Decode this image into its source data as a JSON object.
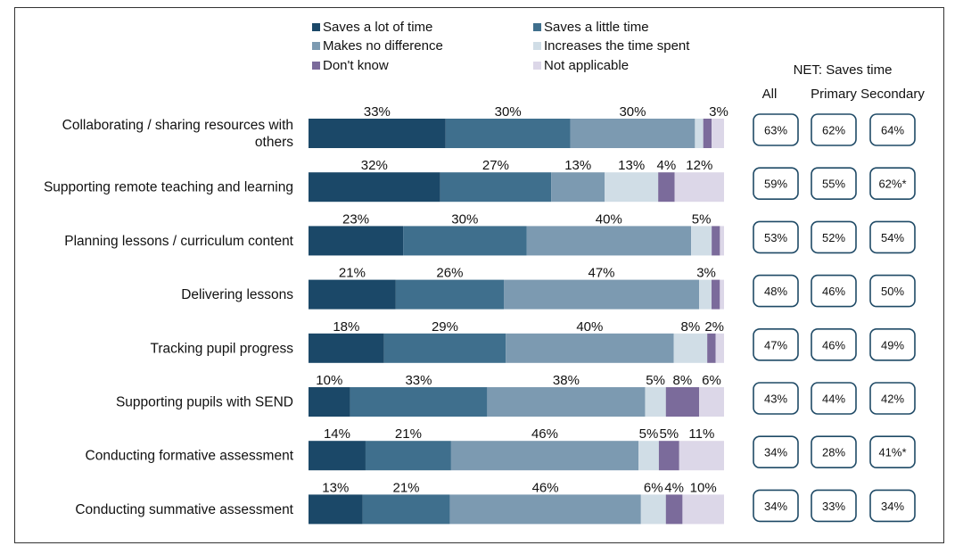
{
  "chart_data": {
    "type": "bar",
    "stacked": "100% horizontal",
    "legend_position": "top",
    "series": [
      {
        "name": "Saves a lot of time",
        "color": "#1b4868",
        "values": [
          33,
          32,
          23,
          21,
          18,
          10,
          14,
          13
        ]
      },
      {
        "name": "Saves a little time",
        "color": "#3f6f8d",
        "values": [
          30,
          27,
          30,
          26,
          29,
          33,
          21,
          21
        ]
      },
      {
        "name": "Makes no difference",
        "color": "#7c9ab1",
        "values": [
          30,
          13,
          40,
          47,
          40,
          38,
          46,
          46
        ]
      },
      {
        "name": "Increases the time spent",
        "color": "#d0dde6",
        "values": [
          2,
          13,
          5,
          3,
          8,
          5,
          5,
          6
        ]
      },
      {
        "name": "Don't know",
        "color": "#7b6b9b",
        "values": [
          2,
          4,
          2,
          2,
          2,
          8,
          5,
          4
        ]
      },
      {
        "name": "Not applicable",
        "color": "#dcd7e8",
        "values": [
          3,
          12,
          1,
          1,
          2,
          6,
          11,
          10
        ]
      }
    ],
    "categories": [
      [
        "Collaborating / sharing resources with",
        "others"
      ],
      [
        "Supporting remote teaching and learning"
      ],
      [
        "Planning lessons / curriculum content"
      ],
      [
        "Delivering lessons"
      ],
      [
        "Tracking pupil progress"
      ],
      [
        "Supporting pupils with SEND"
      ],
      [
        "Conducting formative assessment"
      ],
      [
        "Conducting summative assessment"
      ]
    ],
    "bar_labels": [
      [
        "33%",
        "30%",
        "30%",
        "",
        "",
        "3%"
      ],
      [
        "32%",
        "27%",
        "13%",
        "13%",
        "4%",
        "12%"
      ],
      [
        "23%",
        "30%",
        "40%",
        "5%",
        "",
        ""
      ],
      [
        "21%",
        "26%",
        "47%",
        "3%",
        "",
        ""
      ],
      [
        "18%",
        "29%",
        "40%",
        "8%",
        "2%",
        ""
      ],
      [
        "10%",
        "33%",
        "38%",
        "5%",
        "8%",
        "6%"
      ],
      [
        "14%",
        "21%",
        "46%",
        "5%",
        "5%",
        "11%"
      ],
      [
        "13%",
        "21%",
        "46%",
        "6%",
        "4%",
        "10%"
      ]
    ],
    "net": {
      "title": "NET: Saves time",
      "columns": [
        "All",
        "Primary",
        "Secondary"
      ],
      "rows": [
        [
          "63%",
          "62%",
          "64%"
        ],
        [
          "59%",
          "55%",
          "62%*"
        ],
        [
          "53%",
          "52%",
          "54%"
        ],
        [
          "48%",
          "46%",
          "50%"
        ],
        [
          "47%",
          "46%",
          "49%"
        ],
        [
          "43%",
          "44%",
          "42%"
        ],
        [
          "34%",
          "28%",
          "41%*"
        ],
        [
          "34%",
          "33%",
          "34%"
        ]
      ]
    }
  }
}
